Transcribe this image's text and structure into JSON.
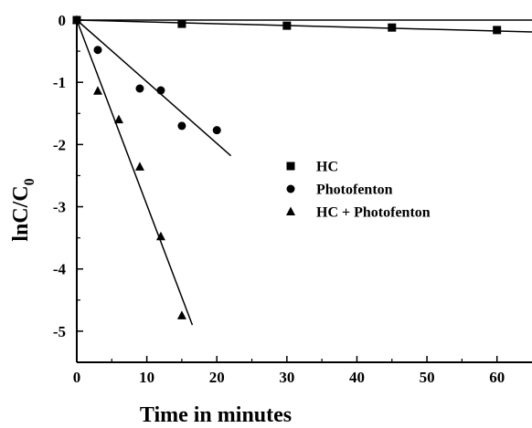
{
  "chart_data": {
    "type": "scatter",
    "title": "",
    "xlabel": "Time in minutes",
    "ylabel": {
      "main": "lnC/C",
      "subscript": "0"
    },
    "xlim": [
      0,
      65
    ],
    "ylim": [
      -5.5,
      0
    ],
    "x_ticks": [
      0,
      10,
      20,
      30,
      40,
      50,
      60
    ],
    "y_ticks": [
      0,
      -1,
      -2,
      -3,
      -4,
      -5
    ],
    "grid": false,
    "legend_position": "center-right",
    "series": [
      {
        "name": "HC",
        "marker": "square",
        "points": [
          [
            0,
            0
          ],
          [
            15,
            -0.06
          ],
          [
            30,
            -0.09
          ],
          [
            45,
            -0.12
          ],
          [
            60,
            -0.16
          ]
        ],
        "fit": [
          [
            0,
            0
          ],
          [
            65,
            -0.19
          ]
        ]
      },
      {
        "name": "Photofenton",
        "marker": "circle",
        "points": [
          [
            0,
            0
          ],
          [
            3,
            -0.48
          ],
          [
            9,
            -1.1
          ],
          [
            12,
            -1.13
          ],
          [
            15,
            -1.7
          ],
          [
            20,
            -1.77
          ]
        ],
        "fit": [
          [
            0,
            0
          ],
          [
            22,
            -2.18
          ]
        ]
      },
      {
        "name": "HC + Photofenton",
        "marker": "triangle",
        "points": [
          [
            0,
            0
          ],
          [
            3,
            -1.14
          ],
          [
            6,
            -1.6
          ],
          [
            9,
            -2.36
          ],
          [
            12,
            -3.48
          ],
          [
            15,
            -4.75
          ]
        ],
        "fit": [
          [
            0,
            0
          ],
          [
            16.5,
            -4.9
          ]
        ]
      }
    ]
  }
}
